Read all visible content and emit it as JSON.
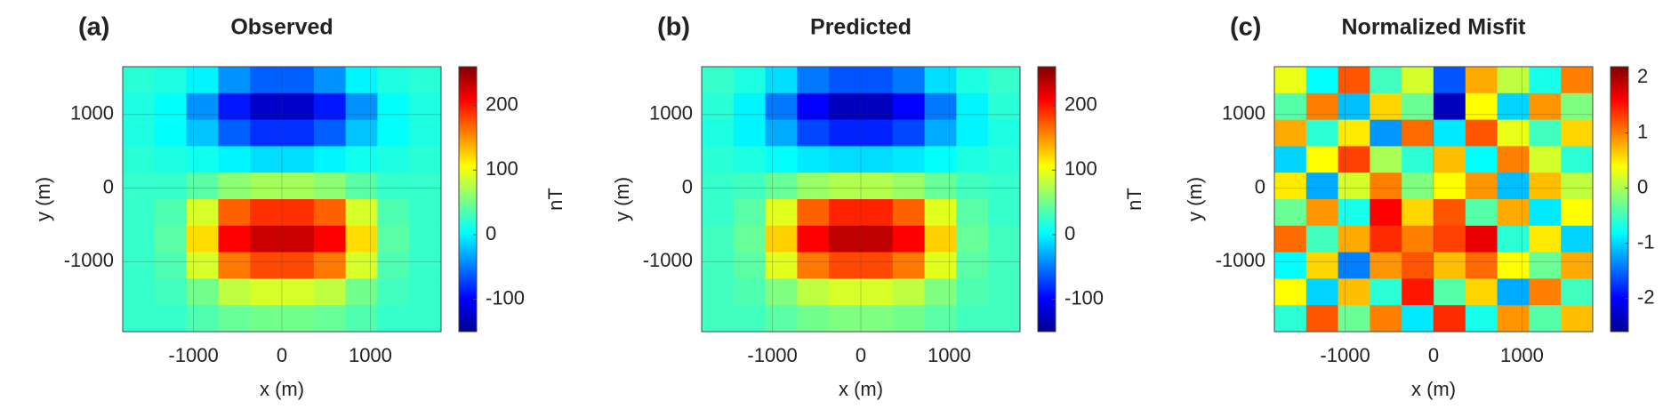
{
  "chart_data": [
    {
      "type": "heatmap",
      "panel_label": "(a)",
      "title": "Observed",
      "xlabel": "x (m)",
      "ylabel": "y (m)",
      "colormap": "jet",
      "grid": true,
      "x": [
        -1620,
        -1260,
        -900,
        -540,
        -180,
        180,
        540,
        900,
        1260,
        1620
      ],
      "y": [
        1470,
        1110,
        750,
        390,
        30,
        -330,
        -690,
        -1050,
        -1410,
        -1770
      ],
      "z": [
        [
          20,
          15,
          0,
          -40,
          -60,
          -60,
          -40,
          0,
          15,
          20
        ],
        [
          15,
          5,
          -40,
          -90,
          -120,
          -120,
          -90,
          -40,
          5,
          15
        ],
        [
          15,
          5,
          -20,
          -60,
          -80,
          -80,
          -60,
          -20,
          5,
          15
        ],
        [
          20,
          15,
          10,
          0,
          -10,
          -10,
          0,
          10,
          15,
          20
        ],
        [
          25,
          25,
          40,
          60,
          70,
          70,
          60,
          40,
          25,
          25
        ],
        [
          25,
          35,
          90,
          170,
          190,
          190,
          170,
          90,
          35,
          25
        ],
        [
          25,
          40,
          120,
          210,
          230,
          230,
          210,
          120,
          40,
          25
        ],
        [
          25,
          35,
          90,
          160,
          180,
          180,
          160,
          90,
          35,
          25
        ],
        [
          25,
          30,
          50,
          80,
          90,
          90,
          80,
          50,
          30,
          25
        ],
        [
          25,
          25,
          35,
          45,
          50,
          50,
          45,
          35,
          25,
          25
        ]
      ],
      "xlim": [
        -1800,
        1800
      ],
      "ylim": [
        -1950,
        1650
      ],
      "xticks": [
        -1000,
        0,
        1000
      ],
      "yticks": [
        -1000,
        0,
        1000
      ],
      "clim": [
        -150,
        260
      ],
      "cticks": [
        -100,
        0,
        100,
        200
      ],
      "clabel": "nT"
    },
    {
      "type": "heatmap",
      "panel_label": "(b)",
      "title": "Predicted",
      "xlabel": "x (m)",
      "ylabel": "y (m)",
      "colormap": "jet",
      "grid": true,
      "x": [
        -1620,
        -1260,
        -900,
        -540,
        -180,
        180,
        540,
        900,
        1260,
        1620
      ],
      "y": [
        1470,
        1110,
        750,
        390,
        30,
        -330,
        -690,
        -1050,
        -1410,
        -1770
      ],
      "z": [
        [
          25,
          15,
          -10,
          -50,
          -65,
          -65,
          -50,
          -10,
          15,
          25
        ],
        [
          20,
          0,
          -50,
          -100,
          -125,
          -125,
          -100,
          -50,
          0,
          20
        ],
        [
          15,
          0,
          -30,
          -70,
          -85,
          -85,
          -70,
          -30,
          0,
          15
        ],
        [
          20,
          15,
          5,
          -5,
          -10,
          -10,
          -5,
          5,
          15,
          20
        ],
        [
          25,
          30,
          45,
          65,
          75,
          75,
          65,
          45,
          30,
          25
        ],
        [
          25,
          40,
          95,
          170,
          195,
          195,
          170,
          95,
          40,
          25
        ],
        [
          30,
          45,
          125,
          210,
          235,
          235,
          210,
          125,
          45,
          30
        ],
        [
          30,
          40,
          95,
          160,
          180,
          180,
          160,
          95,
          40,
          30
        ],
        [
          30,
          35,
          55,
          80,
          90,
          90,
          80,
          55,
          35,
          30
        ],
        [
          30,
          30,
          40,
          50,
          55,
          55,
          50,
          40,
          30,
          30
        ]
      ],
      "xlim": [
        -1800,
        1800
      ],
      "ylim": [
        -1950,
        1650
      ],
      "xticks": [
        -1000,
        0,
        1000
      ],
      "yticks": [
        -1000,
        0,
        1000
      ],
      "clim": [
        -150,
        260
      ],
      "cticks": [
        -100,
        0,
        100,
        200
      ],
      "clabel": "nT"
    },
    {
      "type": "heatmap",
      "panel_label": "(c)",
      "title": "Normalized Misfit",
      "xlabel": "x (m)",
      "ylabel": "y (m)",
      "colormap": "jet",
      "grid": true,
      "x": [
        -1620,
        -1260,
        -900,
        -540,
        -180,
        180,
        540,
        900,
        1260,
        1620
      ],
      "y": [
        1470,
        1110,
        750,
        390,
        30,
        -330,
        -690,
        -1050,
        -1410,
        -1770
      ],
      "z": [
        [
          0.3,
          -0.8,
          1.2,
          -0.5,
          0.2,
          -1.6,
          0.8,
          0.1,
          -0.7,
          1.0
        ],
        [
          -0.4,
          1.0,
          -1.1,
          0.6,
          -0.3,
          -2.3,
          0.4,
          -1.0,
          0.9,
          -0.2
        ],
        [
          0.8,
          -0.6,
          0.5,
          -1.3,
          1.1,
          -0.9,
          1.2,
          0.3,
          -0.5,
          0.6
        ],
        [
          -1.0,
          0.4,
          1.3,
          0.0,
          -0.6,
          0.7,
          -0.8,
          1.0,
          0.2,
          -0.6
        ],
        [
          0.5,
          -1.2,
          0.2,
          1.0,
          -0.2,
          0.4,
          0.9,
          -1.1,
          0.7,
          0.1
        ],
        [
          -0.3,
          0.9,
          -0.7,
          1.6,
          0.6,
          1.2,
          -0.4,
          0.8,
          -0.9,
          0.4
        ],
        [
          1.1,
          -0.5,
          0.8,
          1.4,
          1.0,
          1.3,
          1.7,
          -0.6,
          0.5,
          -1.0
        ],
        [
          -0.8,
          0.6,
          -1.4,
          0.9,
          1.2,
          0.7,
          1.1,
          0.4,
          -0.3,
          0.8
        ],
        [
          0.4,
          -1.0,
          0.7,
          -0.6,
          1.5,
          -0.4,
          0.6,
          -1.2,
          1.0,
          -0.5
        ],
        [
          -0.6,
          1.2,
          -0.3,
          1.0,
          -0.9,
          1.4,
          -0.7,
          0.9,
          -0.4,
          0.7
        ]
      ],
      "xlim": [
        -1800,
        1800
      ],
      "ylim": [
        -1950,
        1650
      ],
      "xticks": [
        -1000,
        0,
        1000
      ],
      "yticks": [
        -1000,
        0,
        1000
      ],
      "clim": [
        -2.6,
        2.2
      ],
      "cticks": [
        -2,
        -1,
        0,
        1,
        2
      ]
    }
  ]
}
